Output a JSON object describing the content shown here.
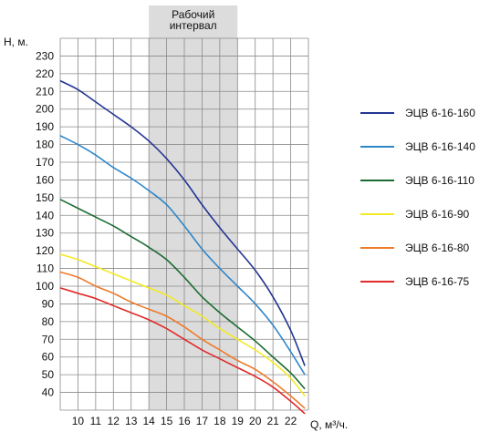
{
  "chart_data": {
    "type": "line",
    "ylabel": "Н, м.",
    "xlabel": "Q, м³/ч.",
    "xlim": [
      9,
      23
    ],
    "ylim": [
      30,
      240
    ],
    "x_ticks": [
      10,
      11,
      12,
      13,
      14,
      15,
      16,
      17,
      18,
      19,
      20,
      21,
      22
    ],
    "y_ticks": [
      40,
      50,
      60,
      70,
      80,
      90,
      100,
      110,
      120,
      130,
      140,
      150,
      160,
      170,
      180,
      190,
      200,
      210,
      220,
      230
    ],
    "grid": true,
    "legend_position": "right",
    "band": {
      "label": [
        "Рабочий",
        "интервал"
      ],
      "x_from": 14,
      "x_to": 19,
      "color": "#dcdcdc"
    },
    "series": [
      {
        "name": "ЭЦВ 6-16-160",
        "color": "#233592",
        "x": [
          9,
          10,
          11,
          12,
          13,
          14,
          15,
          16,
          17,
          18,
          19,
          20,
          21,
          22,
          22.8
        ],
        "y": [
          216,
          211,
          204,
          197,
          190,
          182,
          172,
          160,
          146,
          133,
          121,
          109,
          94,
          75,
          55
        ]
      },
      {
        "name": "ЭЦВ 6-16-140",
        "color": "#2e86c9",
        "x": [
          9,
          10,
          11,
          12,
          13,
          14,
          15,
          16,
          17,
          18,
          19,
          20,
          21,
          22,
          22.8
        ],
        "y": [
          185,
          180,
          174,
          167,
          161,
          154,
          146,
          134,
          121,
          110,
          100,
          90,
          78,
          63,
          50
        ]
      },
      {
        "name": "ЭЦВ 6-16-110",
        "color": "#1b6b30",
        "x": [
          9,
          10,
          11,
          12,
          13,
          14,
          15,
          16,
          17,
          18,
          19,
          20,
          21,
          22,
          22.8
        ],
        "y": [
          149,
          144,
          139,
          134,
          128,
          122,
          115,
          105,
          94,
          85,
          77,
          69,
          60,
          51,
          42
        ]
      },
      {
        "name": "ЭЦВ 6-16-90",
        "color": "#f2ea24",
        "x": [
          9,
          10,
          11,
          12,
          13,
          14,
          15,
          16,
          17,
          18,
          19,
          20,
          21,
          22,
          22.8
        ],
        "y": [
          118,
          115,
          111,
          107,
          103,
          99,
          95,
          89,
          83,
          76,
          70,
          64,
          57,
          48,
          38
        ]
      },
      {
        "name": "ЭЦВ 6-16-80",
        "color": "#ee7a2a",
        "x": [
          9,
          10,
          11,
          12,
          13,
          14,
          15,
          16,
          17,
          18,
          19,
          20,
          21,
          22,
          22.8
        ],
        "y": [
          108,
          105,
          100,
          96,
          91,
          87,
          83,
          77,
          70,
          64,
          58,
          53,
          46,
          38,
          31
        ]
      },
      {
        "name": "ЭЦВ 6-16-75",
        "color": "#e12a2a",
        "x": [
          9,
          10,
          11,
          12,
          13,
          14,
          15,
          16,
          17,
          18,
          19,
          20,
          21,
          22,
          22.8
        ],
        "y": [
          99,
          96,
          93,
          89,
          85,
          81,
          76,
          70,
          64,
          59,
          54,
          49,
          43,
          35,
          28
        ]
      }
    ]
  }
}
